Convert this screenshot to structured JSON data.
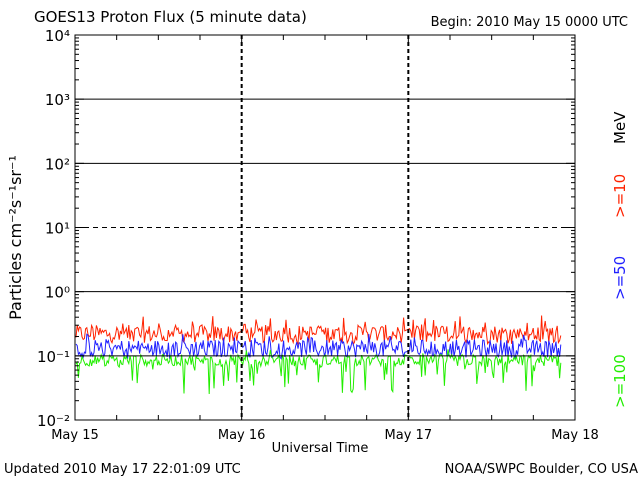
{
  "header": {
    "title": "GOES13 Proton Flux (5 minute data)",
    "begin": "Begin: 2010 May 15 0000 UTC"
  },
  "footer": {
    "updated": "Updated 2010 May 17 22:01:09 UTC",
    "credit": "NOAA/SWPC Boulder, CO USA"
  },
  "colors": {
    "ge10": "#ff2200",
    "ge50": "#2020ff",
    "ge100": "#22ee00",
    "axis": "#000000"
  },
  "chart_data": {
    "type": "line",
    "title": "GOES13 Proton Flux (5 minute data)",
    "xlabel": "Universal Time",
    "ylabel": "Particles cm⁻²s⁻¹sr⁻¹",
    "yscale": "log",
    "ylim": [
      0.01,
      10000
    ],
    "yticks": [
      {
        "value": 10000,
        "label": "10⁴"
      },
      {
        "value": 1000,
        "label": "10³"
      },
      {
        "value": 100,
        "label": "10²"
      },
      {
        "value": 10,
        "label": "10¹"
      },
      {
        "value": 1,
        "label": "10⁰"
      },
      {
        "value": 0.1,
        "label": "10⁻¹"
      },
      {
        "value": 0.01,
        "label": "10⁻²"
      }
    ],
    "xlim": [
      "2010-05-15 00:00",
      "2010-05-18 00:00"
    ],
    "xticks": [
      {
        "value": "2010-05-15",
        "label": "May 15"
      },
      {
        "value": "2010-05-16",
        "label": "May 16"
      },
      {
        "value": "2010-05-17",
        "label": "May 17"
      },
      {
        "value": "2010-05-18",
        "label": "May 18"
      }
    ],
    "reference_lines": [
      {
        "value": 1000,
        "style": "solid"
      },
      {
        "value": 100,
        "style": "solid"
      },
      {
        "value": 10,
        "style": "dashed"
      },
      {
        "value": 1,
        "style": "solid"
      },
      {
        "value": 0.1,
        "style": "solid"
      }
    ],
    "data_end": "2010-05-17 22:00",
    "unit_label": "MeV",
    "series": [
      {
        "name": ">=10",
        "color": "#ff2200",
        "typical": 0.22,
        "range": [
          0.15,
          0.45
        ]
      },
      {
        "name": ">=50",
        "color": "#2020ff",
        "typical": 0.13,
        "range": [
          0.09,
          0.22
        ]
      },
      {
        "name": ">=100",
        "color": "#22ee00",
        "typical": 0.085,
        "range": [
          0.025,
          0.14
        ]
      }
    ]
  }
}
